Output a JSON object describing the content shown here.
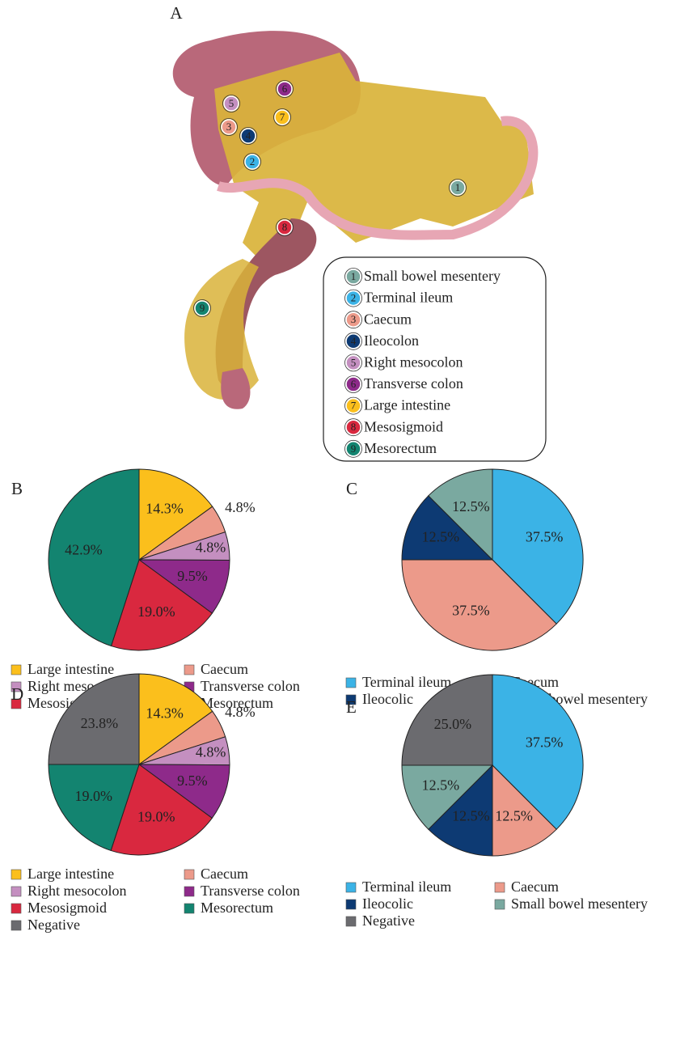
{
  "panel_a": {
    "label": "A",
    "markers": [
      {
        "number": 1,
        "name": "Small bowel mesentery",
        "color": "#7aa9a0"
      },
      {
        "number": 2,
        "name": "Terminal ileum",
        "color": "#3bb3e6"
      },
      {
        "number": 3,
        "name": "Caecum",
        "color": "#ec9a8a"
      },
      {
        "number": 4,
        "name": "Ileocolon",
        "color": "#0d3a73"
      },
      {
        "number": 5,
        "name": "Right mesocolon",
        "color": "#c48fc0"
      },
      {
        "number": 6,
        "name": "Transverse colon",
        "color": "#8e2a8a"
      },
      {
        "number": 7,
        "name": "Large intestine",
        "color": "#fbbf1c"
      },
      {
        "number": 8,
        "name": "Mesosigmoid",
        "color": "#d9283f"
      },
      {
        "number": 9,
        "name": "Mesorectum",
        "color": "#138470"
      }
    ]
  },
  "chart_data": [
    {
      "type": "pie",
      "label": "B",
      "categories": [
        "Large intestine",
        "Caecum",
        "Right mesocolon",
        "Transverse colon",
        "Mesosigmoid",
        "Mesorectum"
      ],
      "values": [
        14.3,
        4.8,
        4.8,
        9.5,
        19.0,
        42.9
      ],
      "value_labels": [
        "14.3%",
        "4.8%",
        "4.8%",
        "9.5%",
        "19.0%",
        "42.9%"
      ],
      "colors": [
        "#fbbf1c",
        "#ec9a8a",
        "#c48fc0",
        "#8e2a8a",
        "#d9283f",
        "#138470"
      ]
    },
    {
      "type": "pie",
      "label": "C",
      "categories": [
        "Terminal ileum",
        "Caecum",
        "Ileocolic",
        "Small bowel mesentery"
      ],
      "values": [
        37.5,
        37.5,
        12.5,
        12.5
      ],
      "value_labels": [
        "37.5%",
        "37.5%",
        "12.5%",
        "12.5%"
      ],
      "colors": [
        "#3bb3e6",
        "#ec9a8a",
        "#0d3a73",
        "#7aa9a0"
      ]
    },
    {
      "type": "pie",
      "label": "D",
      "categories": [
        "Large intestine",
        "Caecum",
        "Right mesocolon",
        "Transverse colon",
        "Mesosigmoid",
        "Mesorectum",
        "Negative"
      ],
      "values": [
        14.3,
        4.8,
        4.8,
        9.5,
        19.0,
        19.0,
        23.8
      ],
      "value_labels": [
        "14.3%",
        "4.8%",
        "4.8%",
        "9.5%",
        "19.0%",
        "19.0%",
        "23.8%"
      ],
      "colors": [
        "#fbbf1c",
        "#ec9a8a",
        "#c48fc0",
        "#8e2a8a",
        "#d9283f",
        "#138470",
        "#6b6b6f"
      ]
    },
    {
      "type": "pie",
      "label": "E",
      "categories": [
        "Terminal ileum",
        "Caecum",
        "Ileocolic",
        "Small bowel mesentery",
        "Negative"
      ],
      "values": [
        37.5,
        12.5,
        12.5,
        12.5,
        25.0
      ],
      "value_labels": [
        "37.5%",
        "12.5%",
        "12.5%",
        "12.5%",
        "25.0%"
      ],
      "colors": [
        "#3bb3e6",
        "#ec9a8a",
        "#0d3a73",
        "#7aa9a0",
        "#6b6b6f"
      ]
    }
  ]
}
